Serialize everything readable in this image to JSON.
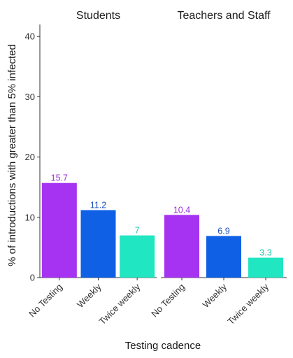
{
  "chart_data": {
    "type": "bar",
    "xlabel": "Testing cadence",
    "ylabel": "% of introductions with greater than 5% infected",
    "ylim": [
      0,
      42
    ],
    "yticks": [
      0,
      10,
      20,
      30,
      40
    ],
    "grid": false,
    "legend": "none",
    "categories": [
      "No Testing",
      "Weekly",
      "Twice weekly"
    ],
    "colors": [
      "#a632f2",
      "#1060e6",
      "#20e6c2"
    ],
    "label_colors": [
      "#9b2fd6",
      "#1a4fb8",
      "#1fc9ae"
    ],
    "facets": [
      {
        "title": "Students",
        "values": [
          15.7,
          11.2,
          7
        ],
        "labels": [
          "15.7",
          "11.2",
          "7"
        ]
      },
      {
        "title": "Teachers and Staff",
        "values": [
          10.4,
          6.9,
          3.3
        ],
        "labels": [
          "10.4",
          "6.9",
          "3.3"
        ]
      }
    ]
  }
}
